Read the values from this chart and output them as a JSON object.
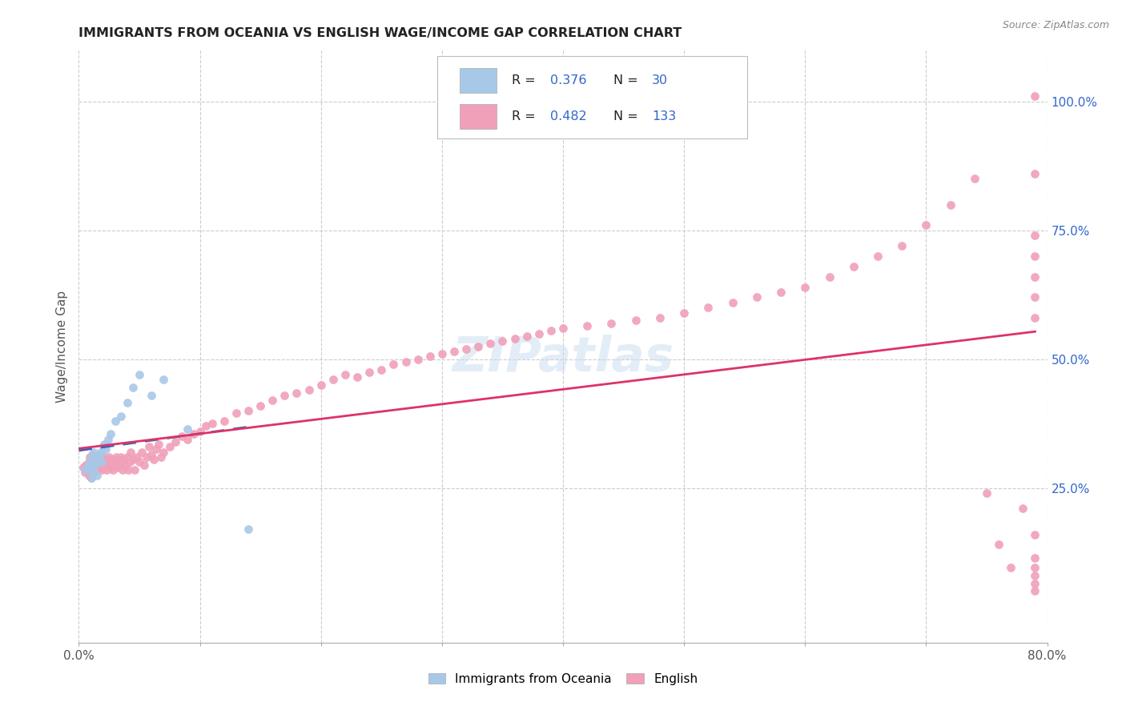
{
  "title": "IMMIGRANTS FROM OCEANIA VS ENGLISH WAGE/INCOME GAP CORRELATION CHART",
  "source": "Source: ZipAtlas.com",
  "watermark": "ZIPatlas",
  "ylabel": "Wage/Income Gap",
  "legend_label_1": "Immigrants from Oceania",
  "legend_label_2": "English",
  "R1": 0.376,
  "N1": 30,
  "R2": 0.482,
  "N2": 133,
  "color1": "#a8c8e8",
  "color2": "#f0a0b8",
  "line_color1": "#3366bb",
  "line_color2": "#dd3366",
  "xlim": [
    0.0,
    0.8
  ],
  "ylim": [
    -0.05,
    1.1
  ],
  "xtick_positions": [
    0.0,
    0.1,
    0.2,
    0.3,
    0.4,
    0.5,
    0.6,
    0.7,
    0.8
  ],
  "xtick_labels": [
    "0.0%",
    "",
    "",
    "",
    "",
    "",
    "",
    "",
    "80.0%"
  ],
  "ytick_vals": [
    0.25,
    0.5,
    0.75,
    1.0
  ],
  "ytick_labels": [
    "25.0%",
    "50.0%",
    "75.0%",
    "100.0%"
  ],
  "scatter1_x": [
    0.005,
    0.007,
    0.008,
    0.009,
    0.01,
    0.01,
    0.011,
    0.012,
    0.012,
    0.013,
    0.014,
    0.015,
    0.016,
    0.017,
    0.018,
    0.019,
    0.02,
    0.021,
    0.022,
    0.024,
    0.026,
    0.03,
    0.035,
    0.04,
    0.045,
    0.05,
    0.06,
    0.07,
    0.09,
    0.14
  ],
  "scatter1_y": [
    0.285,
    0.29,
    0.295,
    0.3,
    0.27,
    0.31,
    0.285,
    0.28,
    0.32,
    0.295,
    0.3,
    0.275,
    0.31,
    0.315,
    0.32,
    0.3,
    0.33,
    0.335,
    0.325,
    0.345,
    0.355,
    0.38,
    0.39,
    0.415,
    0.445,
    0.47,
    0.43,
    0.46,
    0.365,
    0.17
  ],
  "scatter2_x": [
    0.004,
    0.005,
    0.006,
    0.007,
    0.008,
    0.008,
    0.009,
    0.01,
    0.01,
    0.01,
    0.011,
    0.011,
    0.012,
    0.012,
    0.013,
    0.013,
    0.014,
    0.014,
    0.015,
    0.015,
    0.016,
    0.017,
    0.018,
    0.019,
    0.02,
    0.02,
    0.021,
    0.022,
    0.023,
    0.024,
    0.025,
    0.026,
    0.027,
    0.028,
    0.029,
    0.03,
    0.031,
    0.032,
    0.033,
    0.034,
    0.035,
    0.036,
    0.037,
    0.038,
    0.04,
    0.041,
    0.042,
    0.043,
    0.045,
    0.046,
    0.048,
    0.05,
    0.052,
    0.054,
    0.056,
    0.058,
    0.06,
    0.062,
    0.064,
    0.066,
    0.068,
    0.07,
    0.075,
    0.08,
    0.085,
    0.09,
    0.095,
    0.1,
    0.105,
    0.11,
    0.12,
    0.13,
    0.14,
    0.15,
    0.16,
    0.17,
    0.18,
    0.19,
    0.2,
    0.21,
    0.22,
    0.23,
    0.24,
    0.25,
    0.26,
    0.27,
    0.28,
    0.29,
    0.3,
    0.31,
    0.32,
    0.33,
    0.34,
    0.35,
    0.36,
    0.37,
    0.38,
    0.39,
    0.4,
    0.42,
    0.44,
    0.46,
    0.48,
    0.5,
    0.52,
    0.54,
    0.56,
    0.58,
    0.6,
    0.62,
    0.64,
    0.66,
    0.68,
    0.7,
    0.72,
    0.74,
    0.75,
    0.76,
    0.77,
    0.78,
    0.79,
    0.79,
    0.79,
    0.79,
    0.79,
    0.79,
    0.79,
    0.79,
    0.79,
    0.79,
    0.79,
    0.79,
    0.79
  ],
  "scatter2_y": [
    0.29,
    0.28,
    0.295,
    0.285,
    0.3,
    0.275,
    0.31,
    0.29,
    0.305,
    0.27,
    0.295,
    0.315,
    0.285,
    0.3,
    0.29,
    0.31,
    0.295,
    0.305,
    0.285,
    0.3,
    0.31,
    0.295,
    0.305,
    0.285,
    0.29,
    0.31,
    0.295,
    0.305,
    0.285,
    0.3,
    0.31,
    0.29,
    0.305,
    0.285,
    0.295,
    0.3,
    0.31,
    0.29,
    0.305,
    0.295,
    0.31,
    0.285,
    0.305,
    0.295,
    0.31,
    0.285,
    0.3,
    0.32,
    0.305,
    0.285,
    0.31,
    0.3,
    0.32,
    0.295,
    0.31,
    0.33,
    0.315,
    0.305,
    0.325,
    0.335,
    0.31,
    0.32,
    0.33,
    0.34,
    0.35,
    0.345,
    0.355,
    0.36,
    0.37,
    0.375,
    0.38,
    0.395,
    0.4,
    0.41,
    0.42,
    0.43,
    0.435,
    0.44,
    0.45,
    0.46,
    0.47,
    0.465,
    0.475,
    0.48,
    0.49,
    0.495,
    0.5,
    0.505,
    0.51,
    0.515,
    0.52,
    0.525,
    0.53,
    0.535,
    0.54,
    0.545,
    0.55,
    0.555,
    0.56,
    0.565,
    0.57,
    0.575,
    0.58,
    0.59,
    0.6,
    0.61,
    0.62,
    0.63,
    0.64,
    0.66,
    0.68,
    0.7,
    0.72,
    0.76,
    0.8,
    0.85,
    0.24,
    0.14,
    0.095,
    0.21,
    1.01,
    0.86,
    0.74,
    0.7,
    0.66,
    0.62,
    0.58,
    0.16,
    0.115,
    0.08,
    0.095,
    0.05,
    0.065
  ]
}
